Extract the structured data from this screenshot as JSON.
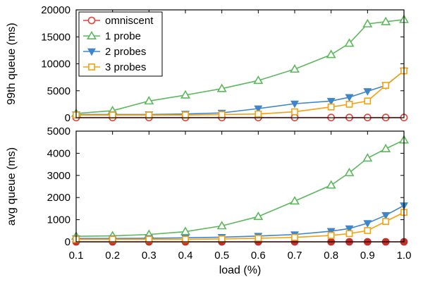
{
  "chart_data": [
    {
      "type": "line",
      "ylabel": "99th queue (ms)",
      "xlabel": "",
      "xlim": [
        0.1,
        1.0
      ],
      "ylim": [
        0,
        20000
      ],
      "yticks": [
        "0",
        "5000",
        "10000",
        "15000",
        "20000"
      ],
      "ytick_values": [
        0,
        5000,
        10000,
        15000,
        20000
      ],
      "legend": "top-left",
      "grid": false,
      "series": [
        {
          "name": "omniscent",
          "color": "#e0453c",
          "marker": "circle-open",
          "x": [
            0.1,
            0.2,
            0.3,
            0.4,
            0.5,
            0.6,
            0.7,
            0.8,
            0.85,
            0.9,
            0.95,
            1.0
          ],
          "values": [
            40,
            40,
            40,
            40,
            40,
            40,
            40,
            40,
            40,
            40,
            40,
            40
          ]
        },
        {
          "name": "1 probe",
          "color": "#5cb85c",
          "marker": "triangle-up-open",
          "x": [
            0.1,
            0.2,
            0.3,
            0.4,
            0.5,
            0.6,
            0.7,
            0.8,
            0.85,
            0.9,
            0.95,
            1.0
          ],
          "values": [
            800,
            1300,
            3100,
            4200,
            5400,
            6900,
            9000,
            11700,
            13800,
            17400,
            17800,
            18200
          ]
        },
        {
          "name": "2 probes",
          "color": "#3f86c8",
          "marker": "triangle-down-filled",
          "x": [
            0.1,
            0.2,
            0.3,
            0.4,
            0.5,
            0.6,
            0.7,
            0.8,
            0.85,
            0.9,
            0.95,
            1.0
          ],
          "values": [
            600,
            600,
            600,
            700,
            900,
            1700,
            2600,
            3100,
            3800,
            4900,
            6000,
            8700
          ]
        },
        {
          "name": "3 probes",
          "color": "#f5a10f",
          "marker": "square-open",
          "x": [
            0.1,
            0.2,
            0.3,
            0.4,
            0.5,
            0.6,
            0.7,
            0.8,
            0.85,
            0.9,
            0.95,
            1.0
          ],
          "values": [
            500,
            500,
            500,
            500,
            600,
            700,
            1100,
            2000,
            2500,
            3100,
            6000,
            8700
          ]
        }
      ]
    },
    {
      "type": "line",
      "ylabel": "avg queue (ms)",
      "xlabel": "load (%)",
      "xlim": [
        0.1,
        1.0
      ],
      "ylim": [
        0,
        5000
      ],
      "xticks": [
        "0.1",
        "0.2",
        "0.3",
        "0.4",
        "0.5",
        "0.6",
        "0.7",
        "0.8",
        "0.9",
        "1.0"
      ],
      "xtick_values": [
        0.1,
        0.2,
        0.3,
        0.4,
        0.5,
        0.6,
        0.7,
        0.8,
        0.9,
        1.0
      ],
      "yticks": [
        "0",
        "1000",
        "2000",
        "3000",
        "4000",
        "5000"
      ],
      "ytick_values": [
        0,
        1000,
        2000,
        3000,
        4000,
        5000
      ],
      "grid": false,
      "series": [
        {
          "name": "omniscent",
          "color": "#c0322e",
          "marker": "circle-filled",
          "x": [
            0.1,
            0.2,
            0.3,
            0.4,
            0.5,
            0.6,
            0.7,
            0.8,
            0.85,
            0.9,
            0.95,
            1.0
          ],
          "values": [
            0,
            0,
            0,
            0,
            0,
            0,
            0,
            0,
            0,
            0,
            0,
            0
          ]
        },
        {
          "name": "1 probe",
          "color": "#5cb85c",
          "marker": "triangle-up-open",
          "x": [
            0.1,
            0.2,
            0.3,
            0.4,
            0.5,
            0.6,
            0.7,
            0.8,
            0.85,
            0.9,
            0.95,
            1.0
          ],
          "values": [
            250,
            270,
            330,
            460,
            720,
            1140,
            1840,
            2560,
            3120,
            3780,
            4200,
            4600
          ]
        },
        {
          "name": "2 probes",
          "color": "#3f86c8",
          "marker": "triangle-down-filled",
          "x": [
            0.1,
            0.2,
            0.3,
            0.4,
            0.5,
            0.6,
            0.7,
            0.8,
            0.85,
            0.9,
            0.95,
            1.0
          ],
          "values": [
            150,
            150,
            160,
            180,
            210,
            260,
            330,
            480,
            600,
            840,
            1200,
            1640
          ]
        },
        {
          "name": "3 probes",
          "color": "#f5a10f",
          "marker": "square-open",
          "x": [
            0.1,
            0.2,
            0.3,
            0.4,
            0.5,
            0.6,
            0.7,
            0.8,
            0.85,
            0.9,
            0.95,
            1.0
          ],
          "values": [
            110,
            110,
            110,
            110,
            130,
            160,
            200,
            290,
            370,
            510,
            920,
            1330
          ]
        }
      ]
    }
  ]
}
